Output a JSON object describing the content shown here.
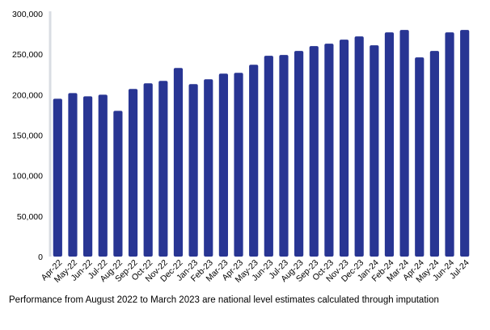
{
  "chart_data": {
    "type": "bar",
    "categories": [
      "Apr-22",
      "May-22",
      "Jun-22",
      "Jul-22",
      "Aug-22",
      "Sep-22",
      "Oct-22",
      "Nov-22",
      "Dec-22",
      "Jan-23",
      "Feb-23",
      "Mar-23",
      "Apr-23",
      "May-23",
      "Jun-23",
      "Jul-23",
      "Aug-23",
      "Sep-23",
      "Oct-23",
      "Nov-23",
      "Dec-23",
      "Jan-24",
      "Feb-24",
      "Mar-24",
      "Apr-24",
      "May-24",
      "Jun-24",
      "Jul-24"
    ],
    "values": [
      195000,
      202000,
      198000,
      200000,
      180000,
      207000,
      214000,
      217000,
      233000,
      213000,
      219000,
      226000,
      227000,
      237000,
      248000,
      249000,
      254000,
      260000,
      263000,
      268000,
      272000,
      261000,
      277000,
      280000,
      246000,
      254000,
      277000,
      280000
    ],
    "title": "",
    "xlabel": "",
    "ylabel": "",
    "ylim": [
      0,
      300000
    ],
    "yticks": [
      0,
      50000,
      100000,
      150000,
      200000,
      250000,
      300000
    ],
    "ytick_labels": [
      "0",
      "50,000",
      "100,000",
      "150,000",
      "200,000",
      "250,000",
      "300,000"
    ],
    "grid": false,
    "bar_color": "#283593",
    "axis_color": "#d9dde3"
  },
  "footnote": "Performance from August 2022 to March 2023 are national level estimates calculated through imputation"
}
